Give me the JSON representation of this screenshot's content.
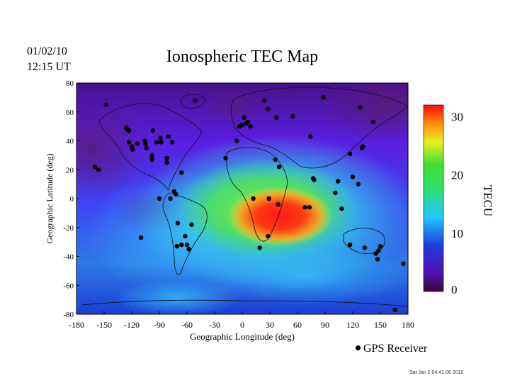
{
  "header": {
    "date": "01/02/10",
    "time": "12:15 UT",
    "title": "Ionospheric TEC Map"
  },
  "footer": "Sat Jan  2 04:41:06 2010",
  "legend": {
    "marker_label": "GPS Receiver"
  },
  "chart_data": {
    "type": "heatmap",
    "title": "Ionospheric TEC Map",
    "xlabel": "Geographic Longitude (deg)",
    "ylabel": "Geographic Latitude (deg)",
    "xlim": [
      -180,
      180
    ],
    "ylim": [
      -80,
      80
    ],
    "xticks": [
      -180,
      -150,
      -120,
      -90,
      -60,
      -30,
      0,
      30,
      60,
      90,
      120,
      150,
      180
    ],
    "yticks": [
      80,
      60,
      40,
      20,
      0,
      -20,
      -40,
      -60,
      -80
    ],
    "colorbar": {
      "label": "TECU",
      "range": [
        0,
        32
      ],
      "ticks": [
        30,
        20,
        10,
        0
      ]
    },
    "peak": {
      "lon": 45,
      "lat": -12,
      "value": 31
    },
    "receivers": [
      [
        -148,
        65
      ],
      [
        -125,
        48
      ],
      [
        -123,
        47
      ],
      [
        -126,
        49
      ],
      [
        -97,
        47
      ],
      [
        -106,
        40
      ],
      [
        -105,
        38
      ],
      [
        -104,
        35
      ],
      [
        -114,
        38
      ],
      [
        -120,
        36
      ],
      [
        -119,
        34
      ],
      [
        -123,
        39
      ],
      [
        -76,
        39
      ],
      [
        -80,
        43
      ],
      [
        -89,
        42
      ],
      [
        -88,
        39
      ],
      [
        -93,
        39
      ],
      [
        -98,
        30
      ],
      [
        -98,
        27
      ],
      [
        -82,
        28
      ],
      [
        -82,
        25
      ],
      [
        -66,
        18
      ],
      [
        -160,
        22
      ],
      [
        -156,
        20
      ],
      [
        -90,
        0
      ],
      [
        -78,
        0
      ],
      [
        -74,
        5
      ],
      [
        -72,
        3
      ],
      [
        -70,
        -17
      ],
      [
        -55,
        -18
      ],
      [
        -71,
        -33
      ],
      [
        -66,
        -32
      ],
      [
        -60,
        -32
      ],
      [
        -58,
        -35
      ],
      [
        -62,
        -26
      ],
      [
        -110,
        -27
      ],
      [
        -51,
        68
      ],
      [
        -18,
        28
      ],
      [
        -6,
        40
      ],
      [
        -3,
        50
      ],
      [
        0,
        51
      ],
      [
        2,
        56
      ],
      [
        4,
        52
      ],
      [
        9,
        50
      ],
      [
        6,
        53
      ],
      [
        24,
        68
      ],
      [
        28,
        62
      ],
      [
        37,
        56
      ],
      [
        55,
        57
      ],
      [
        74,
        43
      ],
      [
        88,
        70
      ],
      [
        128,
        63
      ],
      [
        142,
        53
      ],
      [
        130,
        35
      ],
      [
        131,
        36
      ],
      [
        117,
        31
      ],
      [
        120,
        15
      ],
      [
        126,
        10
      ],
      [
        104,
        12
      ],
      [
        101,
        4
      ],
      [
        108,
        -7
      ],
      [
        117,
        -32
      ],
      [
        133,
        -34
      ],
      [
        145,
        -38
      ],
      [
        147,
        -42
      ],
      [
        150,
        -33
      ],
      [
        148,
        -36
      ],
      [
        175,
        -45
      ],
      [
        166,
        -77
      ],
      [
        36,
        27
      ],
      [
        40,
        22
      ],
      [
        68,
        -6
      ],
      [
        73,
        -6
      ],
      [
        78,
        13
      ],
      [
        77,
        14
      ],
      [
        12,
        0
      ],
      [
        29,
        0
      ],
      [
        39,
        -4
      ],
      [
        19,
        -34
      ],
      [
        28,
        -26
      ]
    ]
  }
}
